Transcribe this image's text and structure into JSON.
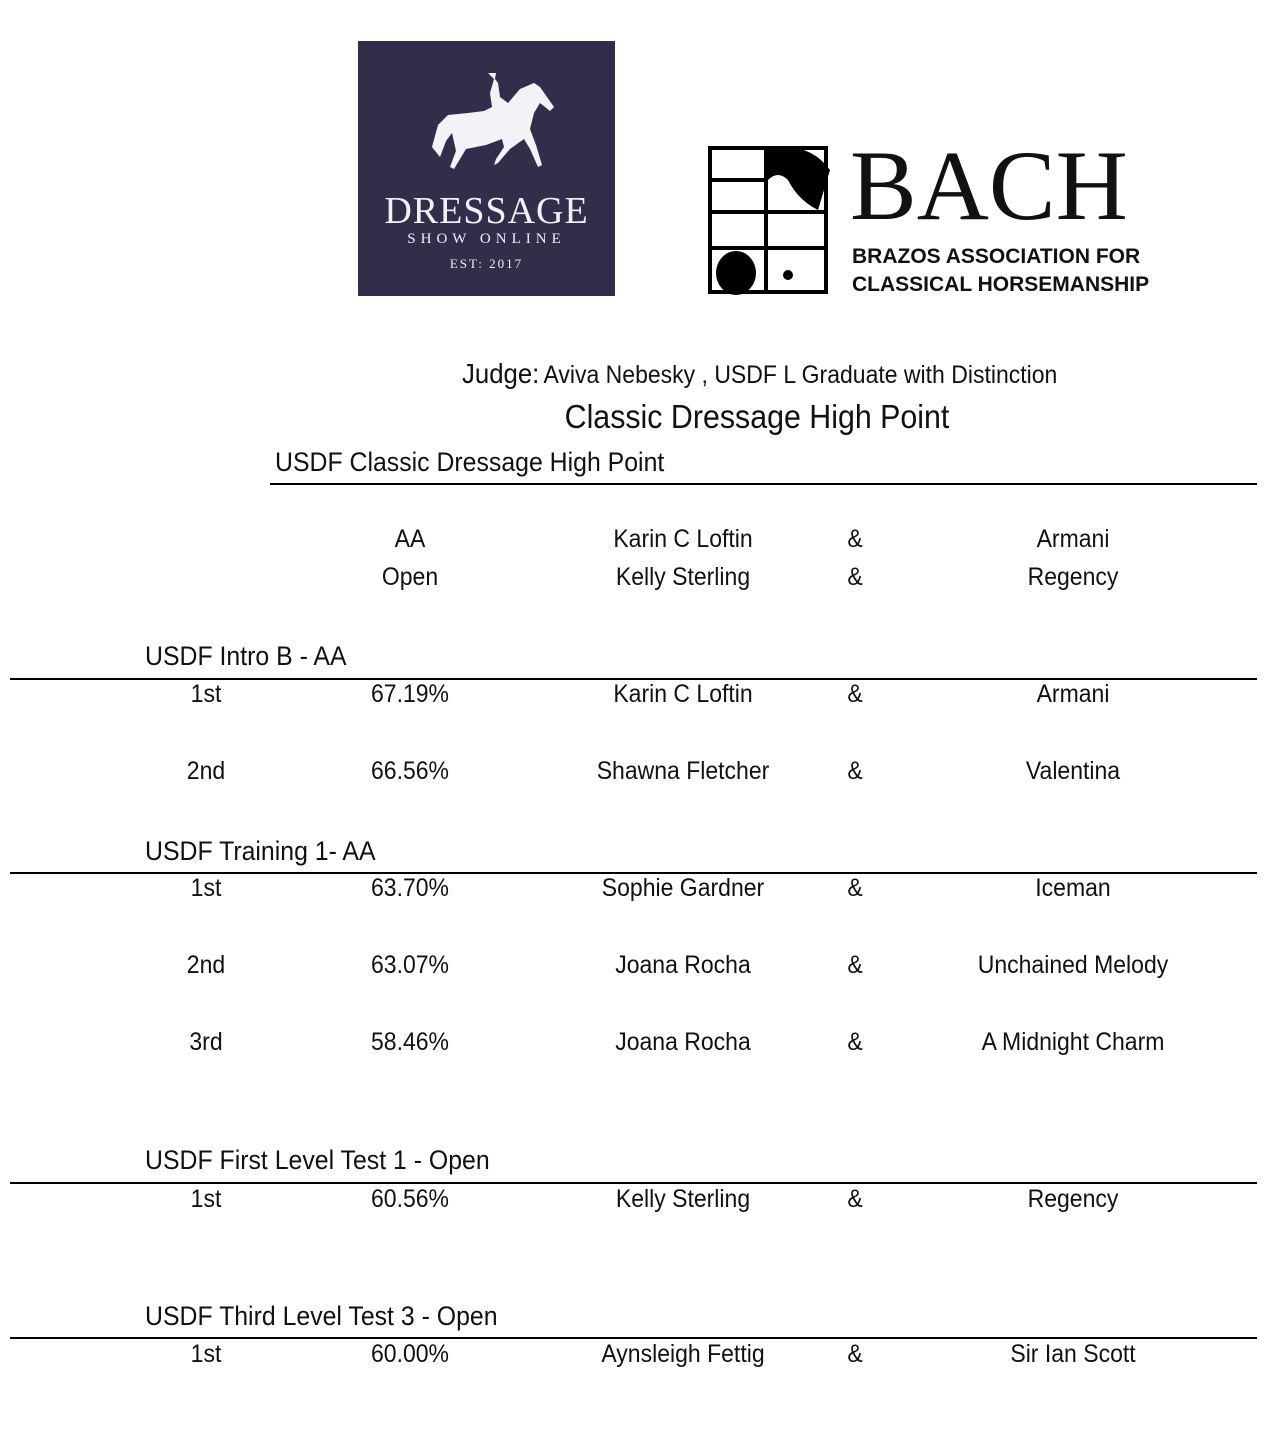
{
  "logos": {
    "dressage": {
      "line1": "DRESSAGE",
      "line2": "SHOW ONLINE",
      "line3": "EST: 2017",
      "bg": "#332d4c"
    },
    "bach": {
      "title": "BACH",
      "line1": "BRAZOS ASSOCIATION FOR",
      "line2": "CLASSICAL HORSEMANSHIP"
    }
  },
  "judge": {
    "label": "Judge:",
    "value": "Aviva Nebesky , USDF L Graduate with Distinction"
  },
  "title": "Classic Dressage High Point",
  "high_point": {
    "heading": "USDF Classic Dressage High Point",
    "rows": [
      {
        "division": "AA",
        "rider": "Karin C Loftin",
        "amp": "&",
        "horse": "Armani"
      },
      {
        "division": "Open",
        "rider": "Kelly Sterling",
        "amp": "&",
        "horse": "Regency"
      }
    ]
  },
  "classes": [
    {
      "name": "USDF Intro B - AA",
      "results": [
        {
          "place": "1st",
          "score": "67.19%",
          "rider": "Karin C Loftin",
          "amp": "&",
          "horse": "Armani"
        },
        {
          "place": "2nd",
          "score": "66.56%",
          "rider": "Shawna Fletcher",
          "amp": "&",
          "horse": "Valentina"
        }
      ]
    },
    {
      "name": "USDF Training 1- AA",
      "results": [
        {
          "place": "1st",
          "score": "63.70%",
          "rider": "Sophie Gardner",
          "amp": "&",
          "horse": "Iceman"
        },
        {
          "place": "2nd",
          "score": "63.07%",
          "rider": "Joana Rocha",
          "amp": "&",
          "horse": "Unchained Melody"
        },
        {
          "place": "3rd",
          "score": "58.46%",
          "rider": "Joana Rocha",
          "amp": "&",
          "horse": "A Midnight Charm"
        }
      ]
    },
    {
      "name": "USDF First Level Test 1 - Open",
      "results": [
        {
          "place": "1st",
          "score": "60.56%",
          "rider": "Kelly Sterling",
          "amp": "&",
          "horse": "Regency"
        }
      ]
    },
    {
      "name": "USDF Third Level Test 3 - Open",
      "results": [
        {
          "place": "1st",
          "score": "60.00%",
          "rider": "Aynsleigh Fettig",
          "amp": "&",
          "horse": "Sir Ian Scott"
        }
      ]
    }
  ]
}
